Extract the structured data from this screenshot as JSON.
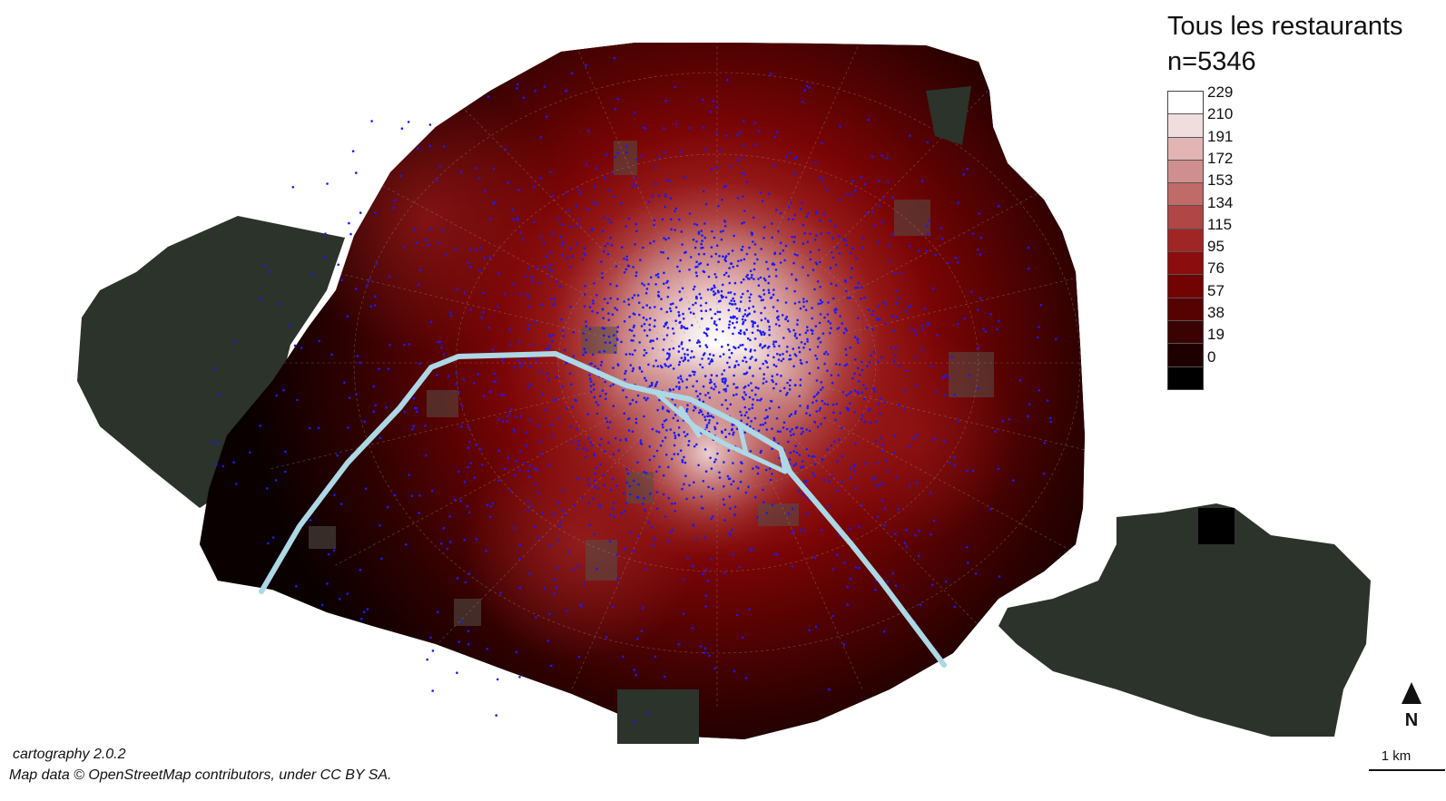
{
  "legend": {
    "title_line1": "Tous les restaurants",
    "title_line2": "n=5346",
    "classes": [
      {
        "label": "229",
        "color": "#ffffff"
      },
      {
        "label": "210",
        "color": "#f0dede"
      },
      {
        "label": "191",
        "color": "#e2b4b4"
      },
      {
        "label": "172",
        "color": "#d08f8f"
      },
      {
        "label": "153",
        "color": "#c06a6a"
      },
      {
        "label": "134",
        "color": "#b04646"
      },
      {
        "label": "115",
        "color": "#a02626"
      },
      {
        "label": "95",
        "color": "#8b0d0d"
      },
      {
        "label": "76",
        "color": "#720303"
      },
      {
        "label": "57",
        "color": "#560202"
      },
      {
        "label": "38",
        "color": "#3a0202"
      },
      {
        "label": "19",
        "color": "#1f0000"
      },
      {
        "label": "0",
        "color": "#000000"
      }
    ]
  },
  "credits": {
    "software": "cartography 2.0.2",
    "source": "Map data © OpenStreetMap contributors, under CC BY SA."
  },
  "north_arrow": {
    "label": "N"
  },
  "scale_bar": {
    "label": "1 km"
  },
  "colors": {
    "points": "#1a1aff",
    "seine": "#add8e6",
    "woods": "#2b332b",
    "outside": "#000000"
  },
  "map": {
    "points_count_shown": 5346
  }
}
